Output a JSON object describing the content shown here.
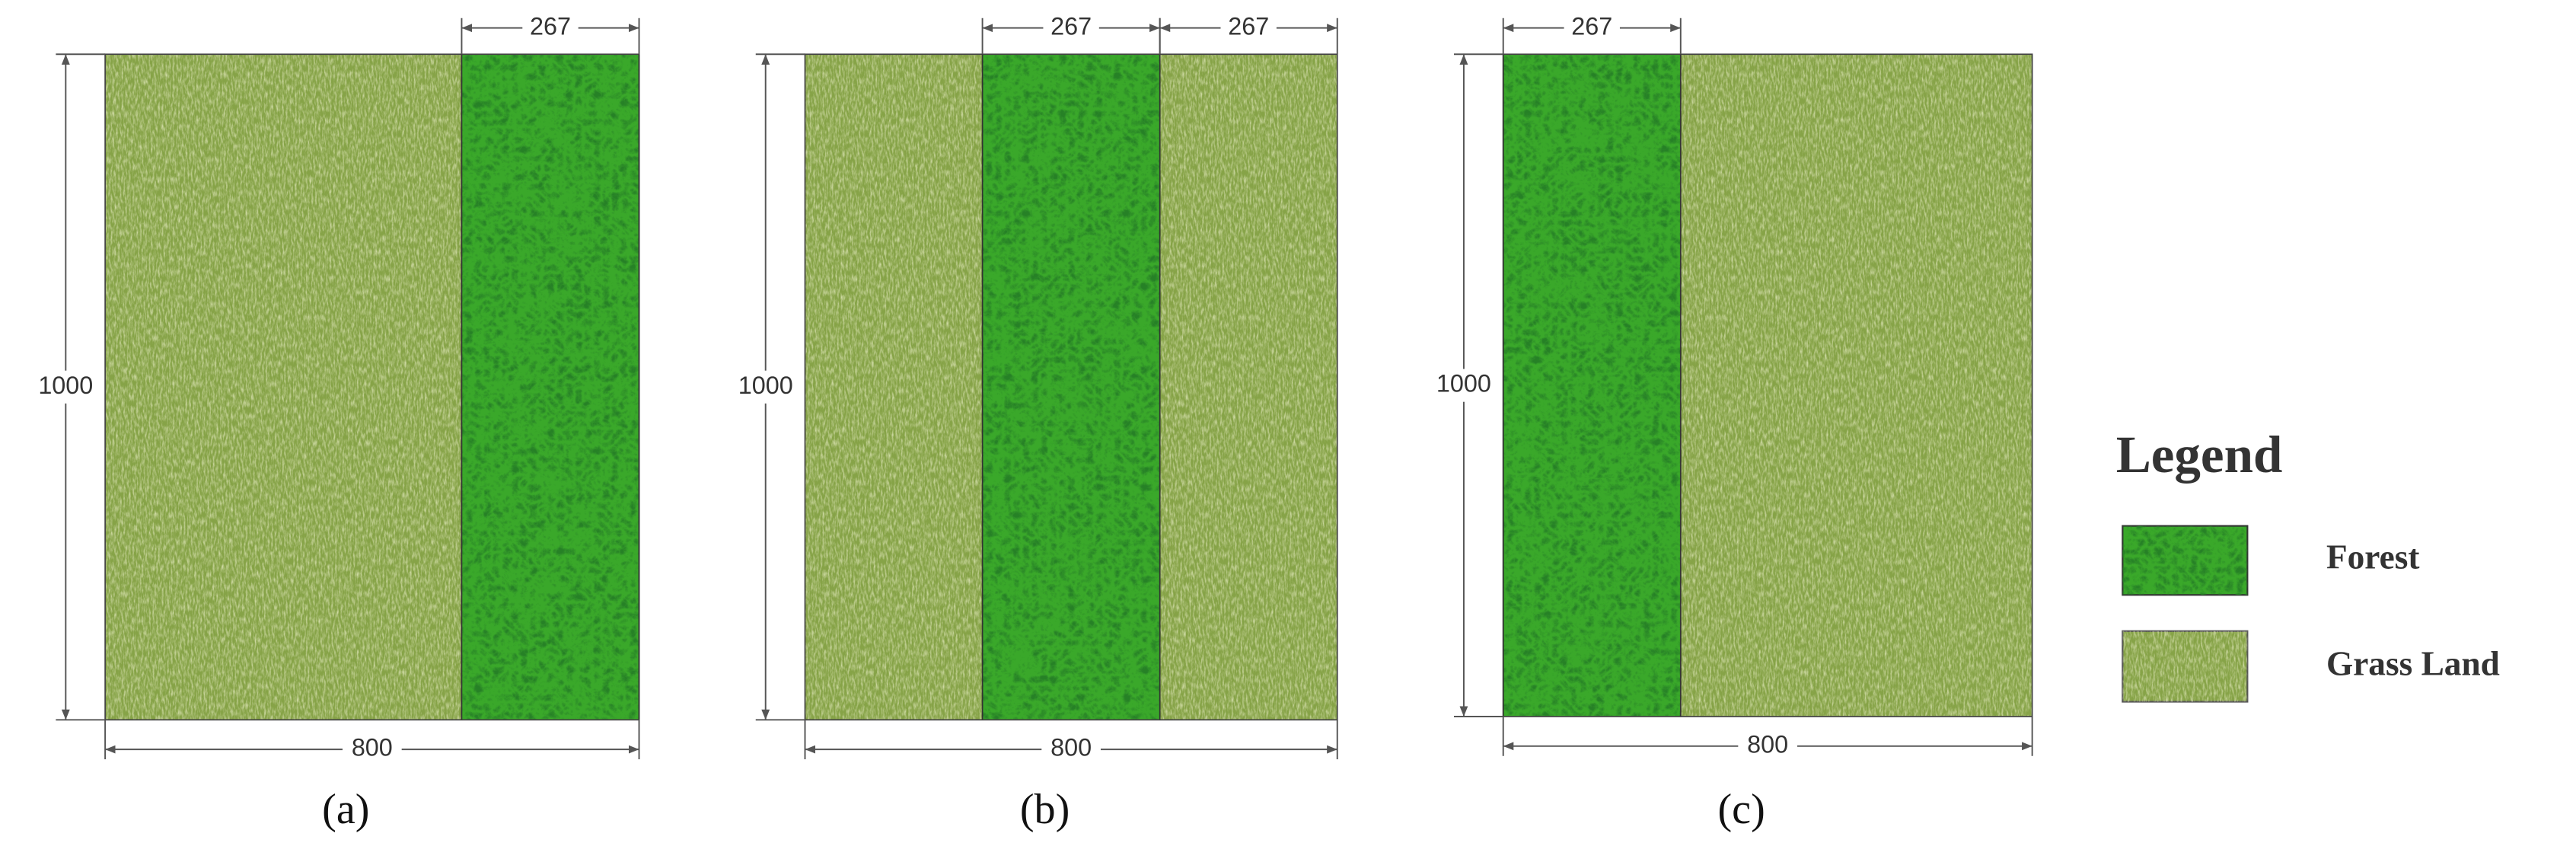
{
  "panels": [
    {
      "label": "(a)",
      "height": "1000",
      "width": "800",
      "top_dims": [
        "267"
      ]
    },
    {
      "label": "(b)",
      "height": "1000",
      "width": "800",
      "top_dims": [
        "267",
        "267"
      ]
    },
    {
      "label": "(c)",
      "height": "1000",
      "width": "800",
      "top_dims": [
        "267"
      ]
    }
  ],
  "legend": {
    "title": "Legend",
    "items": [
      "Forest",
      "Grass Land"
    ]
  }
}
